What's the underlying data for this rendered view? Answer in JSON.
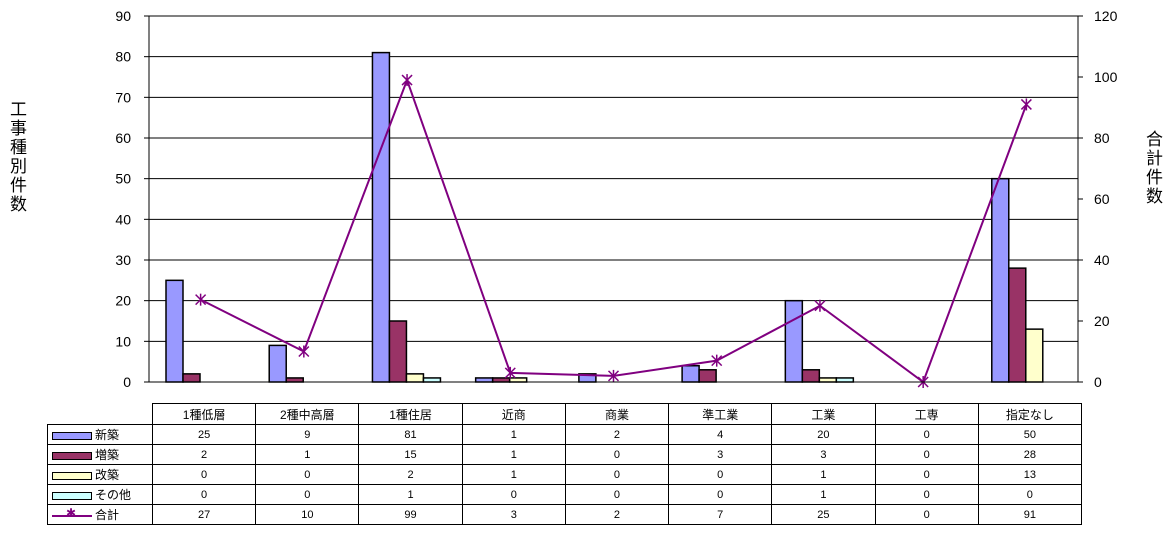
{
  "chart_data": {
    "type": "bar",
    "categories": [
      "1種低層",
      "2種中高層",
      "1種住居",
      "近商",
      "商業",
      "準工業",
      "工業",
      "工専",
      "指定なし"
    ],
    "series": [
      {
        "name": "新築",
        "type": "bar",
        "axis": "left",
        "color": "#9999ff",
        "values": [
          25,
          9,
          81,
          1,
          2,
          4,
          20,
          0,
          50
        ]
      },
      {
        "name": "増築",
        "type": "bar",
        "axis": "left",
        "color": "#993366",
        "values": [
          2,
          1,
          15,
          1,
          0,
          3,
          3,
          0,
          28
        ]
      },
      {
        "name": "改築",
        "type": "bar",
        "axis": "left",
        "color": "#ffffcc",
        "values": [
          0,
          0,
          2,
          1,
          0,
          0,
          1,
          0,
          13
        ]
      },
      {
        "name": "その他",
        "type": "bar",
        "axis": "left",
        "color": "#ccffff",
        "values": [
          0,
          0,
          1,
          0,
          0,
          0,
          1,
          0,
          0
        ]
      },
      {
        "name": "合計",
        "type": "line",
        "axis": "right",
        "color": "#800080",
        "marker": "star",
        "values": [
          27,
          10,
          99,
          3,
          2,
          7,
          25,
          0,
          91
        ]
      }
    ],
    "ylabel_left": "工事種別件数",
    "ylabel_right": "合計件数",
    "ylim_left": [
      0,
      90
    ],
    "yticks_left": [
      0,
      10,
      20,
      30,
      40,
      50,
      60,
      70,
      80,
      90
    ],
    "ylim_right": [
      0,
      120
    ],
    "yticks_right": [
      0,
      20,
      40,
      60,
      80,
      100,
      120
    ],
    "grid": true,
    "legend": "data-table"
  }
}
